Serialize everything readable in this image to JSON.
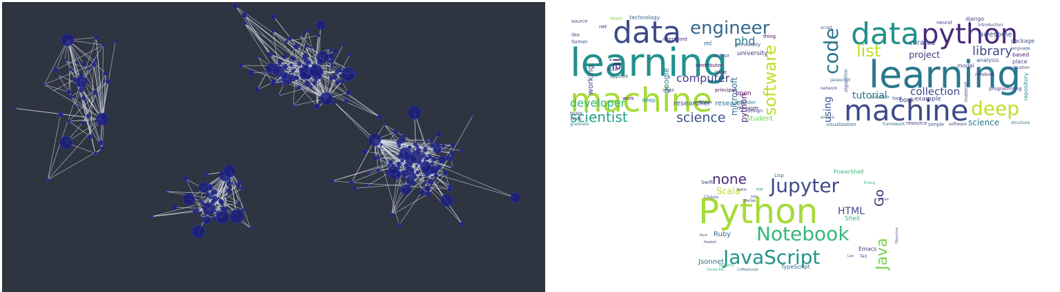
{
  "colors": {
    "panel_bg": "#2e3440",
    "node_fill": "#1a1f7a",
    "node_stroke": "#3a40b0",
    "edge": "#d8dee9"
  },
  "wordclouds": {
    "bio": {
      "large": [
        "learning",
        "machine",
        "data",
        "engineer",
        "software",
        "scientist",
        "science",
        "developer",
        "computer",
        "phd",
        "ai",
        "python",
        "microsoft",
        "working",
        "researcher",
        "research",
        "student",
        "university",
        "open",
        "google"
      ],
      "small": [
        "source",
        "team",
        "technology",
        "interested",
        "previously",
        "net",
        "applied",
        "like",
        "former",
        "brain",
        "azure",
        "graduate",
        "work",
        "deep",
        "code",
        "lead",
        "system",
        "founder",
        "lover",
        "manager",
        "design",
        "author",
        "thing",
        "ml",
        "contributor",
        "principal"
      ]
    },
    "repo": {
      "large": [
        "learning",
        "machine",
        "data",
        "python",
        "code",
        "deep",
        "list",
        "library",
        "tutorial",
        "collection",
        "using",
        "project",
        "science",
        "curated",
        "awesome"
      ],
      "small": [
        "django",
        "neural",
        "package",
        "introduction",
        "language",
        "based",
        "place",
        "repository",
        "model",
        "analysis",
        "notebook",
        "algorithm",
        "network",
        "solution",
        "tool",
        "book",
        "example",
        "material",
        "programming",
        "visualization",
        "framework",
        "resource",
        "simple",
        "software",
        "structure",
        "application",
        "source",
        "script",
        "javascript"
      ]
    },
    "lang": {
      "large": [
        "Python",
        "JavaScript",
        "Notebook",
        "Jupyter",
        "none",
        "Java",
        "Go",
        "HTML",
        "Scala",
        "Ruby",
        "Shell",
        "Jsonnet",
        "TypeScript",
        "PowerShell",
        "Swift",
        "Lisp",
        "Emacs",
        "Clojure"
      ],
      "small": [
        "Rust",
        "Haskell",
        "Kotlin",
        "Erlang",
        "Julia",
        "PHP",
        "Matlab",
        "TeX",
        "Lua",
        "Objective",
        "CoffeeScript",
        "Makefile",
        "Dockerfile",
        "Elixir"
      ]
    }
  }
}
